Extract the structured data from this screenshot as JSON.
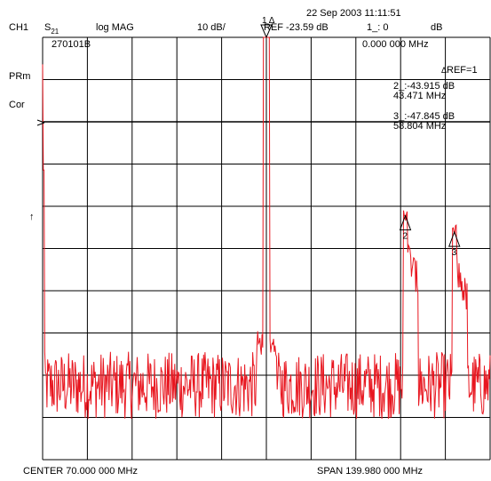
{
  "header": {
    "datetime": "22 Sep 2003  11:11:51",
    "channel": "CH1",
    "param_main": "S",
    "param_sub": "21",
    "format": "log MAG",
    "scale": "10 dB/",
    "ref": "REF -23.59 dB",
    "marker_active": "1_: 0",
    "marker_unit": "dB"
  },
  "grid_labels": {
    "id": "270101B",
    "marker1_freq": "0.000 000 MHz",
    "delta_ref": "REF=1",
    "m2_level": "2_:-43.915 dB",
    "m2_freq": "43.471 MHz",
    "m3_level": "3_:-47.845 dB",
    "m3_freq": "58.804 MHz"
  },
  "side_labels": {
    "prm": "PRm",
    "cor": "Cor",
    "arrow": "↑"
  },
  "footer": {
    "center": "CENTER  70.000 000 MHz",
    "span": "SPAN  139.980 000 MHz"
  },
  "chart_data": {
    "type": "line",
    "trace_color": "#e8161f",
    "grid_color": "#000000",
    "xlim_mhz": [
      0.01,
      139.99
    ],
    "ylim_db": [
      -123.59,
      -23.59
    ],
    "grid": true,
    "markers": [
      {
        "label": "1",
        "delta_symbol": "Δ",
        "freq_mhz": 70.0,
        "level_db": -23.59
      },
      {
        "label": "2",
        "freq_mhz": 113.471,
        "level_db": -67.5
      },
      {
        "label": "3",
        "freq_mhz": 128.804,
        "level_db": -71.4
      }
    ],
    "series": [
      {
        "peaks": [
          {
            "freq_mhz": 70.0,
            "level_db": -23.59
          },
          {
            "freq_mhz": 113.47,
            "level_db": -67.5
          },
          {
            "freq_mhz": 128.8,
            "level_db": -71.4
          }
        ],
        "noise_floor_db": -106
      }
    ]
  }
}
